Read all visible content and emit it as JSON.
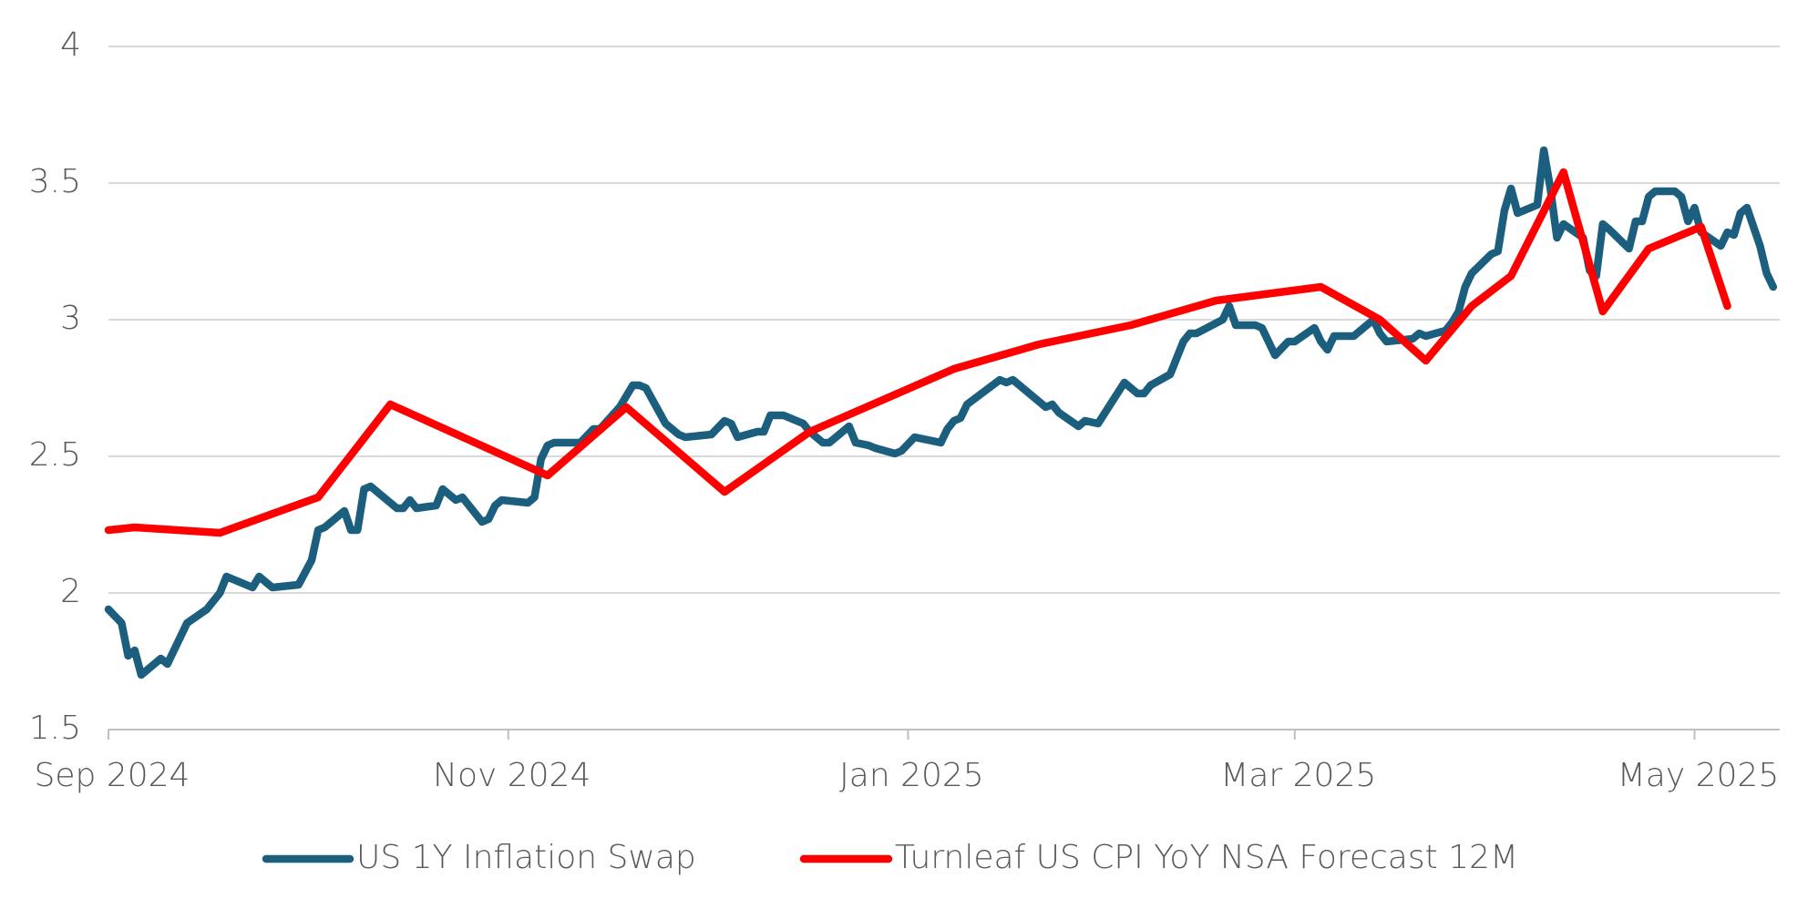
{
  "chart_data": {
    "type": "line",
    "xlim": [
      "2024-09-01",
      "2025-05-14"
    ],
    "xticks": [
      {
        "value": "2024-09-01",
        "label": "Sep 2024"
      },
      {
        "value": "2024-11-01",
        "label": "Nov 2024"
      },
      {
        "value": "2025-01-01",
        "label": "Jan 2025"
      },
      {
        "value": "2025-03-01",
        "label": "Mar 2025"
      },
      {
        "value": "2025-05-01",
        "label": "May 2025"
      }
    ],
    "ylim": [
      1.5,
      4
    ],
    "yticks": [
      1.5,
      2,
      2.5,
      3,
      3.5,
      4
    ],
    "grid": true,
    "legend": "bottom",
    "series": [
      {
        "name": "US 1Y Inflation Swap",
        "color": "#1b5e7e",
        "x": [
          "2024-09-01",
          "2024-09-03",
          "2024-09-04",
          "2024-09-05",
          "2024-09-06",
          "2024-09-09",
          "2024-09-10",
          "2024-09-12",
          "2024-09-13",
          "2024-09-16",
          "2024-09-18",
          "2024-09-19",
          "2024-09-23",
          "2024-09-24",
          "2024-09-26",
          "2024-09-30",
          "2024-10-02",
          "2024-10-03",
          "2024-10-04",
          "2024-10-07",
          "2024-10-08",
          "2024-10-09",
          "2024-10-10",
          "2024-10-11",
          "2024-10-15",
          "2024-10-16",
          "2024-10-17",
          "2024-10-18",
          "2024-10-21",
          "2024-10-22",
          "2024-10-24",
          "2024-10-25",
          "2024-10-28",
          "2024-10-29",
          "2024-10-30",
          "2024-10-31",
          "2024-11-04",
          "2024-11-05",
          "2024-11-06",
          "2024-11-07",
          "2024-11-08",
          "2024-11-12",
          "2024-11-14",
          "2024-11-15",
          "2024-11-18",
          "2024-11-20",
          "2024-11-21",
          "2024-11-22",
          "2024-11-25",
          "2024-11-27",
          "2024-11-28",
          "2024-12-02",
          "2024-12-04",
          "2024-12-05",
          "2024-12-06",
          "2024-12-09",
          "2024-12-10",
          "2024-12-11",
          "2024-12-13",
          "2024-12-16",
          "2024-12-17",
          "2024-12-19",
          "2024-12-20",
          "2024-12-23",
          "2024-12-24",
          "2024-12-26",
          "2024-12-27",
          "2024-12-30",
          "2024-12-31",
          "2025-01-02",
          "2025-01-06",
          "2025-01-07",
          "2025-01-08",
          "2025-01-09",
          "2025-01-10",
          "2025-01-15",
          "2025-01-16",
          "2025-01-17",
          "2025-01-21",
          "2025-01-22",
          "2025-01-23",
          "2025-01-24",
          "2025-01-27",
          "2025-01-28",
          "2025-01-30",
          "2025-02-03",
          "2025-02-05",
          "2025-02-06",
          "2025-02-07",
          "2025-02-10",
          "2025-02-12",
          "2025-02-13",
          "2025-02-14",
          "2025-02-18",
          "2025-02-19",
          "2025-02-20",
          "2025-02-23",
          "2025-02-24",
          "2025-02-26",
          "2025-02-28",
          "2025-03-01",
          "2025-03-04",
          "2025-03-05",
          "2025-03-06",
          "2025-03-07",
          "2025-03-10",
          "2025-03-12",
          "2025-03-13",
          "2025-03-14",
          "2025-03-15",
          "2025-03-19",
          "2025-03-20",
          "2025-03-21",
          "2025-03-24",
          "2025-03-25",
          "2025-03-26",
          "2025-03-27",
          "2025-03-28",
          "2025-03-31",
          "2025-04-01",
          "2025-04-02",
          "2025-04-03",
          "2025-04-04",
          "2025-04-07",
          "2025-04-08",
          "2025-04-09",
          "2025-04-10",
          "2025-04-11",
          "2025-04-14",
          "2025-04-15",
          "2025-04-16",
          "2025-04-17",
          "2025-04-18",
          "2025-04-21",
          "2025-04-22",
          "2025-04-23",
          "2025-04-24",
          "2025-04-25",
          "2025-04-28",
          "2025-04-29",
          "2025-04-30",
          "2025-05-01",
          "2025-05-02",
          "2025-05-05",
          "2025-05-06",
          "2025-05-07",
          "2025-05-08",
          "2025-05-09",
          "2025-05-11",
          "2025-05-12",
          "2025-05-13"
        ],
        "values": [
          1.94,
          1.89,
          1.77,
          1.79,
          1.7,
          1.76,
          1.74,
          1.84,
          1.89,
          1.94,
          2.0,
          2.06,
          2.02,
          2.06,
          2.02,
          2.03,
          2.12,
          2.23,
          2.24,
          2.3,
          2.23,
          2.23,
          2.38,
          2.39,
          2.31,
          2.31,
          2.34,
          2.31,
          2.32,
          2.38,
          2.34,
          2.35,
          2.26,
          2.27,
          2.32,
          2.34,
          2.33,
          2.35,
          2.49,
          2.54,
          2.55,
          2.55,
          2.6,
          2.6,
          2.68,
          2.76,
          2.76,
          2.75,
          2.62,
          2.58,
          2.57,
          2.58,
          2.63,
          2.62,
          2.57,
          2.59,
          2.59,
          2.65,
          2.65,
          2.62,
          2.59,
          2.55,
          2.55,
          2.61,
          2.55,
          2.54,
          2.53,
          2.51,
          2.52,
          2.57,
          2.55,
          2.6,
          2.63,
          2.64,
          2.69,
          2.78,
          2.77,
          2.78,
          2.7,
          2.68,
          2.69,
          2.66,
          2.61,
          2.63,
          2.62,
          2.77,
          2.73,
          2.73,
          2.76,
          2.8,
          2.92,
          2.95,
          2.95,
          3.0,
          3.05,
          2.98,
          2.98,
          2.97,
          2.87,
          2.92,
          2.92,
          2.97,
          2.92,
          2.89,
          2.94,
          2.94,
          2.98,
          3.0,
          2.95,
          2.92,
          2.93,
          2.95,
          2.94,
          2.96,
          2.99,
          3.03,
          3.12,
          3.17,
          3.24,
          3.25,
          3.4,
          3.48,
          3.39,
          3.42,
          3.62,
          3.48,
          3.3,
          3.35,
          3.3,
          3.18,
          3.16,
          3.35,
          3.33,
          3.26,
          3.36,
          3.36,
          3.45,
          3.47,
          3.47,
          3.45,
          3.36,
          3.41,
          3.32,
          3.27,
          3.32,
          3.31,
          3.39,
          3.41,
          3.27,
          3.17,
          3.12
        ]
      },
      {
        "name": "Turnleaf US CPI YoY NSA Forecast 12M",
        "color": "#ff0000",
        "x": [
          "2024-09-01",
          "2024-09-05",
          "2024-09-18",
          "2024-10-03",
          "2024-10-14",
          "2024-11-07",
          "2024-11-19",
          "2024-12-04",
          "2024-12-17",
          "2025-01-08",
          "2025-01-21",
          "2025-02-04",
          "2025-02-17",
          "2025-03-05",
          "2025-03-14",
          "2025-03-21",
          "2025-03-28",
          "2025-04-03",
          "2025-04-11",
          "2025-04-17",
          "2025-04-24",
          "2025-05-02",
          "2025-05-06"
        ],
        "values": [
          2.23,
          2.24,
          2.22,
          2.35,
          2.69,
          2.43,
          2.68,
          2.37,
          2.59,
          2.82,
          2.91,
          2.98,
          3.07,
          3.12,
          3.0,
          2.85,
          3.05,
          3.16,
          3.54,
          3.03,
          3.26,
          3.34,
          3.05
        ]
      }
    ]
  }
}
